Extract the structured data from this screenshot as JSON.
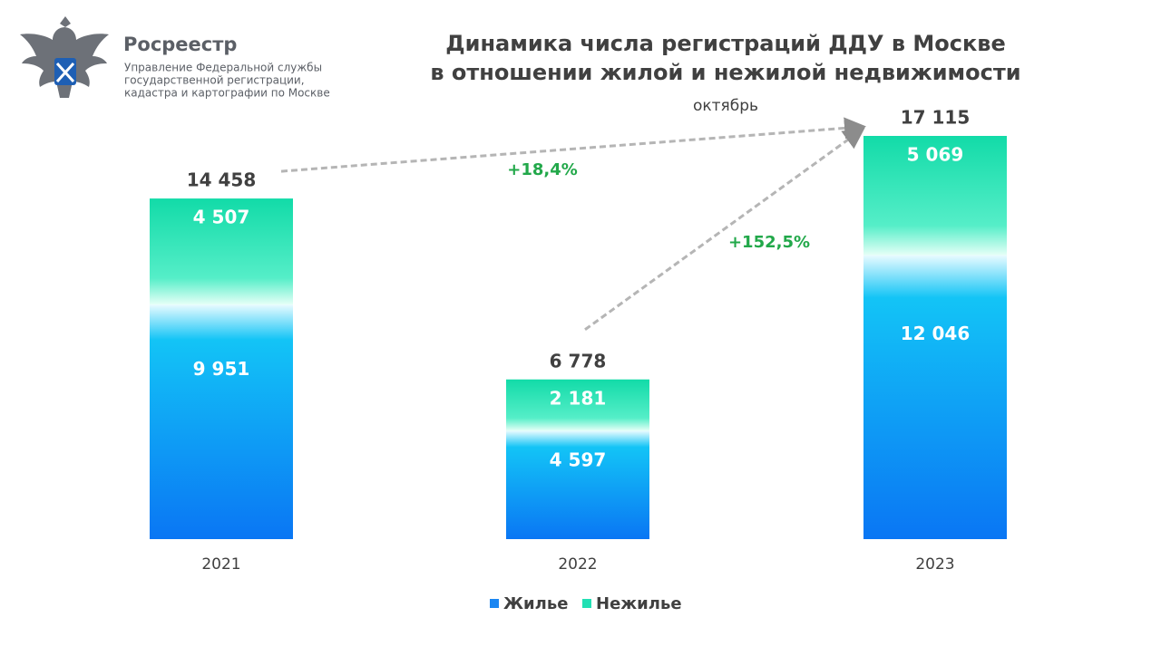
{
  "header": {
    "brand": "Росреестр",
    "org_lines": [
      "Управление Федеральной службы",
      "государственной регистрации,",
      "кадастра и картографии по Москве"
    ]
  },
  "chart_data": {
    "type": "stacked-bar",
    "title_lines": [
      "Динамика числа регистраций ДДУ в Москве",
      "в отношении жилой и нежилой недвижимости"
    ],
    "subtitle": "октябрь",
    "categories": [
      "2021",
      "2022",
      "2023"
    ],
    "series": [
      {
        "name": "Жилье",
        "color": "#1a86f2",
        "values": [
          9951,
          4597,
          12046
        ],
        "value_labels": [
          "9 951",
          "4 597",
          "12 046"
        ]
      },
      {
        "name": "Нежилье",
        "color": "#22e0b4",
        "values": [
          4507,
          2181,
          5069
        ],
        "value_labels": [
          "4 507",
          "2 181",
          "5 069"
        ]
      }
    ],
    "totals": [
      14458,
      6778,
      17115
    ],
    "total_labels": [
      "14 458",
      "6 778",
      "17 115"
    ],
    "annotations": [
      "+18,4%",
      "+152,5%"
    ]
  }
}
